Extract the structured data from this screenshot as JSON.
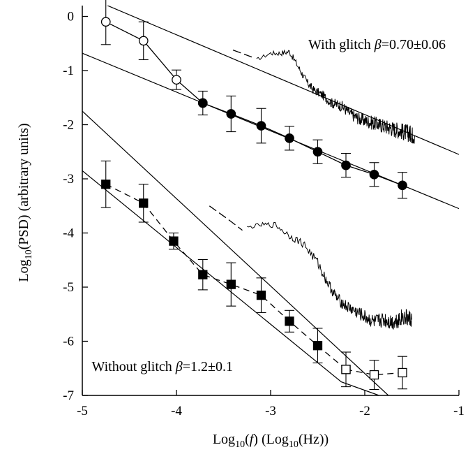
{
  "chart_data": {
    "type": "line",
    "title": "",
    "xlabel_parts": [
      "Log",
      "10",
      "(",
      "f",
      ")  (Log",
      "10",
      "(Hz))"
    ],
    "ylabel_parts": [
      "Log",
      "10",
      "(PSD)  (arbitrary units)"
    ],
    "xlim": [
      -5,
      -1
    ],
    "ylim": [
      -7,
      0.2
    ],
    "x_ticks": [
      -5,
      -4,
      -3,
      -2,
      -1
    ],
    "x_tick_labels": [
      "-5",
      "-4",
      "-3",
      "-2",
      "-1"
    ],
    "y_ticks": [
      0,
      -1,
      -2,
      -3,
      -4,
      -5,
      -6,
      -7
    ],
    "y_tick_labels": [
      "0",
      "-1",
      "-2",
      "-3",
      "-4",
      "-5",
      "-6",
      "-7"
    ],
    "grid": false,
    "annotations": [
      {
        "id": "with-glitch",
        "prefix": "With glitch ",
        "beta_symbol": "β",
        "suffix": "=0.70±0.06",
        "x": -2.6,
        "y": -0.6
      },
      {
        "id": "without-glitch",
        "prefix": "Without glitch ",
        "beta_symbol": "β",
        "suffix": "=1.2±0.1",
        "x": -4.9,
        "y": -6.55
      }
    ],
    "series": [
      {
        "id": "with-glitch-psd",
        "style": "noisy-line",
        "points": [
          [
            -3.15,
            -0.8
          ],
          [
            -3.0,
            -0.68
          ],
          [
            -2.9,
            -0.68
          ],
          [
            -2.8,
            -0.65
          ],
          [
            -2.7,
            -0.95
          ],
          [
            -2.62,
            -1.2
          ],
          [
            -2.55,
            -1.35
          ],
          [
            -2.45,
            -1.45
          ],
          [
            -2.35,
            -1.6
          ],
          [
            -2.25,
            -1.65
          ],
          [
            -2.15,
            -1.8
          ],
          [
            -2.05,
            -1.9
          ],
          [
            -1.95,
            -1.95
          ],
          [
            -1.85,
            -2.0
          ],
          [
            -1.75,
            -2.05
          ],
          [
            -1.65,
            -2.1
          ],
          [
            -1.55,
            -2.15
          ],
          [
            -1.47,
            -2.2
          ]
        ]
      },
      {
        "id": "with-glitch-dashed",
        "style": "dashed",
        "points": [
          [
            -3.4,
            -0.62
          ],
          [
            -3.2,
            -0.75
          ]
        ]
      },
      {
        "id": "with-glitch-open-circles",
        "style": "open-circle",
        "points": [
          [
            -4.75,
            -0.1
          ],
          [
            -4.35,
            -0.45
          ],
          [
            -4.0,
            -1.17
          ],
          [
            -3.72,
            -1.6
          ]
        ],
        "errors": [
          0.42,
          0.35,
          0.18,
          0.0
        ]
      },
      {
        "id": "with-glitch-filled-circles",
        "style": "filled-circle",
        "points": [
          [
            -3.72,
            -1.6
          ],
          [
            -3.42,
            -1.8
          ],
          [
            -3.1,
            -2.02
          ],
          [
            -2.8,
            -2.25
          ],
          [
            -2.5,
            -2.5
          ],
          [
            -2.2,
            -2.75
          ],
          [
            -1.9,
            -2.92
          ],
          [
            -1.6,
            -3.12
          ]
        ],
        "errors": [
          0.22,
          0.33,
          0.32,
          0.22,
          0.22,
          0.22,
          0.22,
          0.24
        ]
      },
      {
        "id": "without-glitch-psd",
        "style": "noisy-line",
        "points": [
          [
            -3.25,
            -3.9
          ],
          [
            -3.1,
            -3.85
          ],
          [
            -2.95,
            -3.85
          ],
          [
            -2.8,
            -4.05
          ],
          [
            -2.65,
            -4.2
          ],
          [
            -2.5,
            -4.55
          ],
          [
            -2.4,
            -4.9
          ],
          [
            -2.3,
            -5.2
          ],
          [
            -2.2,
            -5.35
          ],
          [
            -2.1,
            -5.45
          ],
          [
            -2.0,
            -5.55
          ],
          [
            -1.9,
            -5.65
          ],
          [
            -1.8,
            -5.6
          ],
          [
            -1.7,
            -5.65
          ],
          [
            -1.6,
            -5.55
          ],
          [
            -1.5,
            -5.6
          ]
        ]
      },
      {
        "id": "without-glitch-dashed",
        "style": "dashed",
        "points": [
          [
            -3.65,
            -3.5
          ],
          [
            -3.45,
            -3.75
          ],
          [
            -3.3,
            -3.95
          ]
        ]
      },
      {
        "id": "without-glitch-filled-squares",
        "style": "filled-square",
        "points": [
          [
            -4.75,
            -3.1
          ],
          [
            -4.35,
            -3.45
          ],
          [
            -4.03,
            -4.15
          ],
          [
            -3.72,
            -4.77
          ],
          [
            -3.42,
            -4.95
          ],
          [
            -3.1,
            -5.15
          ],
          [
            -2.8,
            -5.63
          ],
          [
            -2.5,
            -6.08
          ],
          [
            -2.2,
            -6.52
          ]
        ],
        "errors": [
          0.43,
          0.35,
          0.15,
          0.28,
          0.4,
          0.32,
          0.2,
          0.32,
          0.32
        ]
      },
      {
        "id": "without-glitch-open-squares",
        "style": "open-square",
        "points": [
          [
            -2.2,
            -6.52
          ],
          [
            -1.9,
            -6.62
          ],
          [
            -1.6,
            -6.58
          ]
        ],
        "errors": [
          0.0,
          0.27,
          0.3
        ]
      }
    ],
    "fit_lines": [
      {
        "id": "fit-upper",
        "points": [
          [
            -4.8,
            0.25
          ],
          [
            -1.0,
            -2.55
          ]
        ]
      },
      {
        "id": "fit-middle",
        "points": [
          [
            -5.0,
            -0.68
          ],
          [
            -1.0,
            -3.55
          ]
        ]
      },
      {
        "id": "fit-lower-steep",
        "points": [
          [
            -5.0,
            -1.75
          ],
          [
            -1.75,
            -7.0
          ]
        ]
      },
      {
        "id": "fit-lower",
        "points": [
          [
            -5.0,
            -2.85
          ],
          [
            -2.25,
            -6.75
          ],
          [
            -1.85,
            -7.0
          ]
        ]
      }
    ]
  }
}
